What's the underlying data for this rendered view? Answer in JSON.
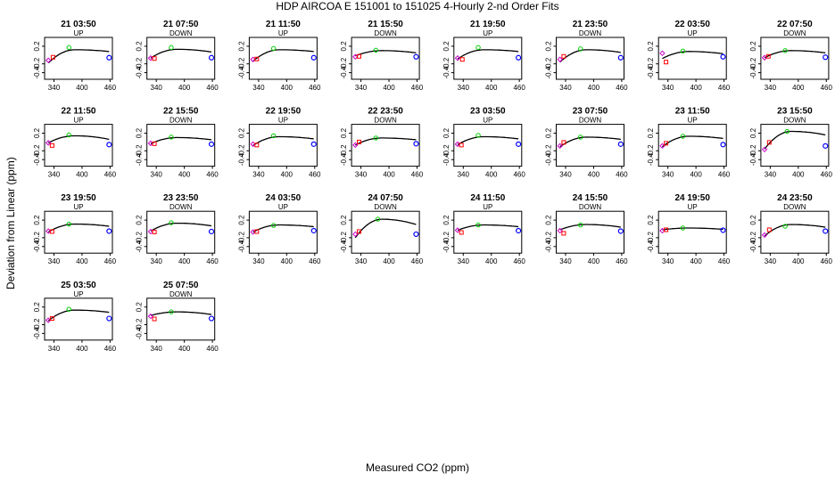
{
  "title": "HDP   AIRCOA E   151001 to 151025   4-Hourly 2-nd Order Fits",
  "chart_data": {
    "type": "scatter",
    "title": "HDP   AIRCOA E   151001 to 151025   4-Hourly 2-nd Order Fits",
    "xlabel": "Measured CO2 (ppm)",
    "ylabel": "Deviation from Linear (ppm)",
    "xlim": [
      320,
      465
    ],
    "ylim": [
      -0.55,
      0.4
    ],
    "xticks": [
      "340",
      "400",
      "460"
    ],
    "yticks": [
      "-0.4",
      "-0.2",
      "0.2"
    ],
    "point_colors": [
      "#cc00cc",
      "#ff0000",
      "#00cc00",
      "#0000ff"
    ],
    "panels": [
      {
        "label": "21 03:50",
        "dir": "UP",
        "curve": [
          0.12,
          0.3,
          0.04
        ],
        "points": [
          [
            328,
            -0.12
          ],
          [
            338,
            -0.05
          ],
          [
            372,
            0.17
          ],
          [
            458,
            -0.06
          ]
        ]
      },
      {
        "label": "21 07:50",
        "dir": "DOWN",
        "curve": [
          0.13,
          0.2,
          0.06
        ],
        "points": [
          [
            328,
            -0.07
          ],
          [
            336,
            -0.08
          ],
          [
            372,
            0.17
          ],
          [
            458,
            -0.06
          ]
        ]
      },
      {
        "label": "21 11:50",
        "dir": "UP",
        "curve": [
          0.12,
          0.26,
          0.04
        ],
        "points": [
          [
            328,
            -0.1
          ],
          [
            336,
            -0.09
          ],
          [
            372,
            0.15
          ],
          [
            458,
            -0.06
          ]
        ]
      },
      {
        "label": "21 15:50",
        "dir": "DOWN",
        "curve": [
          0.1,
          0.12,
          0.05
        ],
        "points": [
          [
            328,
            -0.04
          ],
          [
            336,
            -0.03
          ],
          [
            372,
            0.11
          ],
          [
            458,
            -0.04
          ]
        ]
      },
      {
        "label": "21 19:50",
        "dir": "UP",
        "curve": [
          0.12,
          0.21,
          0.04
        ],
        "points": [
          [
            328,
            -0.07
          ],
          [
            338,
            -0.1
          ],
          [
            372,
            0.17
          ],
          [
            458,
            -0.06
          ]
        ]
      },
      {
        "label": "21 23:50",
        "dir": "DOWN",
        "curve": [
          0.12,
          0.28,
          0.06
        ],
        "points": [
          [
            328,
            -0.1
          ],
          [
            336,
            -0.03
          ],
          [
            372,
            0.14
          ],
          [
            458,
            -0.06
          ]
        ]
      },
      {
        "label": "22 03:50",
        "dir": "UP",
        "curve": [
          0.08,
          0.16,
          0.05
        ],
        "points": [
          [
            328,
            0.04
          ],
          [
            336,
            -0.16
          ],
          [
            372,
            0.09
          ],
          [
            458,
            -0.04
          ]
        ]
      },
      {
        "label": "22 07:50",
        "dir": "DOWN",
        "curve": [
          0.1,
          0.16,
          0.05
        ],
        "points": [
          [
            328,
            -0.06
          ],
          [
            336,
            -0.03
          ],
          [
            372,
            0.1
          ],
          [
            458,
            -0.05
          ]
        ]
      },
      {
        "label": "22 11:50",
        "dir": "UP",
        "curve": [
          0.14,
          0.16,
          0.08
        ],
        "points": [
          [
            328,
            -0.02
          ],
          [
            336,
            -0.08
          ],
          [
            372,
            0.16
          ],
          [
            458,
            -0.06
          ]
        ]
      },
      {
        "label": "22 15:50",
        "dir": "DOWN",
        "curve": [
          0.1,
          0.14,
          0.05
        ],
        "points": [
          [
            328,
            -0.03
          ],
          [
            336,
            -0.04
          ],
          [
            372,
            0.11
          ],
          [
            458,
            -0.05
          ]
        ]
      },
      {
        "label": "22 19:50",
        "dir": "UP",
        "curve": [
          0.12,
          0.2,
          0.05
        ],
        "points": [
          [
            328,
            -0.05
          ],
          [
            336,
            -0.07
          ],
          [
            372,
            0.14
          ],
          [
            458,
            -0.05
          ]
        ]
      },
      {
        "label": "22 23:50",
        "dir": "DOWN",
        "curve": [
          0.09,
          0.16,
          0.04
        ],
        "points": [
          [
            328,
            -0.07
          ],
          [
            336,
            0.0
          ],
          [
            372,
            0.09
          ],
          [
            458,
            -0.04
          ]
        ]
      },
      {
        "label": "23 03:50",
        "dir": "UP",
        "curve": [
          0.12,
          0.18,
          0.05
        ],
        "points": [
          [
            328,
            -0.05
          ],
          [
            336,
            -0.07
          ],
          [
            372,
            0.15
          ],
          [
            458,
            -0.05
          ]
        ]
      },
      {
        "label": "23 07:50",
        "dir": "DOWN",
        "curve": [
          0.11,
          0.22,
          0.05
        ],
        "points": [
          [
            328,
            -0.09
          ],
          [
            336,
            -0.01
          ],
          [
            372,
            0.11
          ],
          [
            458,
            -0.05
          ]
        ]
      },
      {
        "label": "23 11:50",
        "dir": "UP",
        "curve": [
          0.13,
          0.24,
          0.05
        ],
        "points": [
          [
            328,
            -0.09
          ],
          [
            336,
            -0.03
          ],
          [
            372,
            0.13
          ],
          [
            458,
            -0.06
          ]
        ]
      },
      {
        "label": "23 15:50",
        "dir": "DOWN",
        "curve": [
          0.24,
          0.4,
          0.08
        ],
        "points": [
          [
            328,
            -0.17
          ],
          [
            338,
            -0.01
          ],
          [
            376,
            0.24
          ],
          [
            458,
            -0.09
          ]
        ]
      },
      {
        "label": "23 19:50",
        "dir": "UP",
        "curve": [
          0.11,
          0.18,
          0.05
        ],
        "points": [
          [
            328,
            -0.05
          ],
          [
            336,
            -0.06
          ],
          [
            372,
            0.11
          ],
          [
            458,
            -0.05
          ]
        ]
      },
      {
        "label": "23 23:50",
        "dir": "DOWN",
        "curve": [
          0.13,
          0.18,
          0.06
        ],
        "points": [
          [
            328,
            -0.06
          ],
          [
            336,
            -0.07
          ],
          [
            372,
            0.14
          ],
          [
            458,
            -0.06
          ]
        ]
      },
      {
        "label": "24 03:50",
        "dir": "UP",
        "curve": [
          0.09,
          0.16,
          0.04
        ],
        "points": [
          [
            328,
            -0.07
          ],
          [
            336,
            -0.06
          ],
          [
            372,
            0.08
          ],
          [
            458,
            -0.04
          ]
        ]
      },
      {
        "label": "24 07:50",
        "dir": "DOWN",
        "curve": [
          0.22,
          0.42,
          0.12
        ],
        "points": [
          [
            328,
            -0.12
          ],
          [
            336,
            -0.06
          ],
          [
            376,
            0.22
          ],
          [
            458,
            -0.12
          ]
        ]
      },
      {
        "label": "24 11:50",
        "dir": "UP",
        "curve": [
          0.09,
          0.12,
          0.04
        ],
        "points": [
          [
            328,
            -0.03
          ],
          [
            336,
            -0.08
          ],
          [
            372,
            0.09
          ],
          [
            458,
            -0.04
          ]
        ]
      },
      {
        "label": "24 15:50",
        "dir": "DOWN",
        "curve": [
          0.1,
          0.12,
          0.06
        ],
        "points": [
          [
            328,
            -0.04
          ],
          [
            336,
            -0.1
          ],
          [
            372,
            0.09
          ],
          [
            458,
            -0.05
          ]
        ]
      },
      {
        "label": "24 19:50",
        "dir": "UP",
        "curve": [
          0.02,
          0.04,
          0.03
        ],
        "points": [
          [
            328,
            -0.04
          ],
          [
            336,
            -0.02
          ],
          [
            372,
            0.02
          ],
          [
            458,
            -0.03
          ]
        ]
      },
      {
        "label": "24 23:50",
        "dir": "DOWN",
        "curve": [
          0.1,
          0.26,
          0.06
        ],
        "points": [
          [
            328,
            -0.14
          ],
          [
            338,
            -0.02
          ],
          [
            372,
            0.06
          ],
          [
            458,
            -0.05
          ]
        ]
      },
      {
        "label": "25 03:50",
        "dir": "UP",
        "curve": [
          0.13,
          0.24,
          0.05
        ],
        "points": [
          [
            328,
            -0.1
          ],
          [
            336,
            -0.06
          ],
          [
            372,
            0.15
          ],
          [
            458,
            -0.06
          ]
        ]
      },
      {
        "label": "25 07:50",
        "dir": "DOWN",
        "curve": [
          0.09,
          0.08,
          0.06
        ],
        "points": [
          [
            328,
            -0.01
          ],
          [
            336,
            -0.07
          ],
          [
            372,
            0.09
          ],
          [
            458,
            -0.06
          ]
        ]
      }
    ]
  }
}
